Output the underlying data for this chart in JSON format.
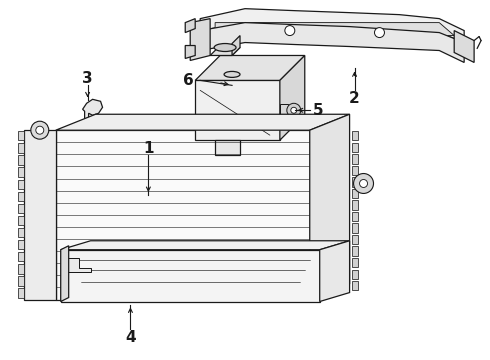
{
  "background_color": "#ffffff",
  "line_color": "#1a1a1a",
  "line_width": 0.9,
  "label_fontsize": 9,
  "fig_width": 4.9,
  "fig_height": 3.6,
  "dpi": 100
}
